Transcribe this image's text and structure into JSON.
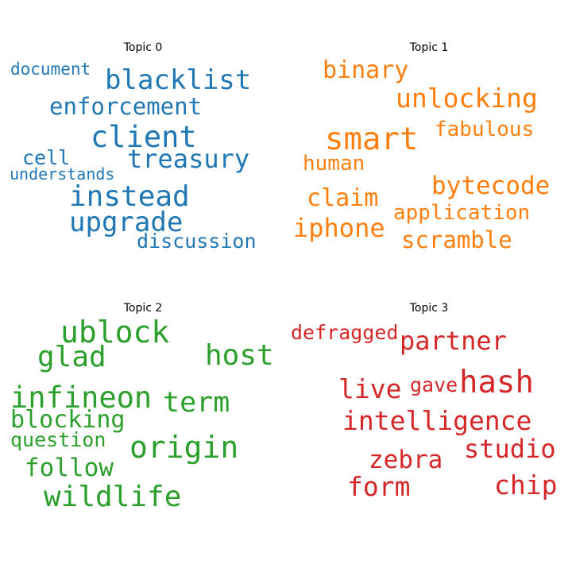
{
  "topics": [
    {
      "title": "Topic 0",
      "color": "#1f77b4",
      "words": [
        "document",
        "blacklist",
        "enforcement",
        "client",
        "treasury",
        "cell",
        "understands",
        "instead",
        "upgrade",
        "discussion"
      ]
    },
    {
      "title": "Topic 1",
      "color": "#ff7f0e",
      "words": [
        "binary",
        "unlocking",
        "smart",
        "fabulous",
        "human",
        "claim",
        "bytecode",
        "application",
        "iphone",
        "scramble"
      ]
    },
    {
      "title": "Topic 2",
      "color": "#2ca02c",
      "words": [
        "ublock",
        "glad",
        "host",
        "infineon",
        "term",
        "blocking",
        "question",
        "origin",
        "follow",
        "wildlife"
      ]
    },
    {
      "title": "Topic 3",
      "color": "#d62728",
      "words": [
        "defragged",
        "partner",
        "hash",
        "live",
        "gave",
        "intelligence",
        "studio",
        "zebra",
        "form",
        "chip"
      ]
    }
  ]
}
